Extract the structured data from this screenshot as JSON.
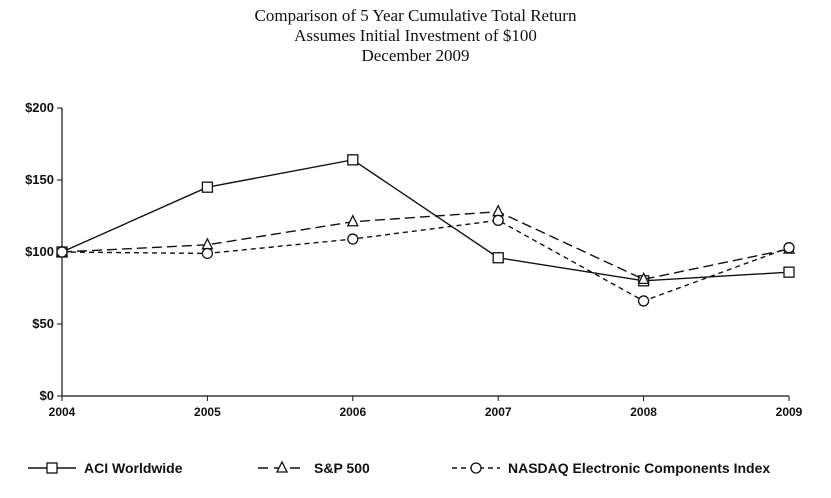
{
  "chart_data": {
    "type": "line",
    "title_lines": [
      "Comparison of 5 Year Cumulative Total Return",
      "Assumes Initial Investment of $100",
      "December 2009"
    ],
    "x": [
      "2004",
      "2005",
      "2006",
      "2007",
      "2008",
      "2009"
    ],
    "y_ticks": [
      {
        "value": 0,
        "label": "$0"
      },
      {
        "value": 50,
        "label": "$50"
      },
      {
        "value": 100,
        "label": "$100"
      },
      {
        "value": 150,
        "label": "$150"
      },
      {
        "value": 200,
        "label": "$200"
      }
    ],
    "ylim": [
      0,
      200
    ],
    "grid": false,
    "legend_position": "bottom",
    "series": [
      {
        "name": "ACI Worldwide",
        "marker": "square",
        "dash": "solid",
        "values": [
          100,
          145,
          164,
          96,
          80,
          86
        ]
      },
      {
        "name": "S&P 500",
        "marker": "triangle",
        "dash": "long-dash",
        "values": [
          100,
          105,
          121,
          128,
          81,
          102
        ]
      },
      {
        "name": "NASDAQ Electronic Components Index",
        "marker": "circle",
        "dash": "short-dash",
        "values": [
          100,
          99,
          109,
          122,
          66,
          103
        ]
      }
    ]
  }
}
